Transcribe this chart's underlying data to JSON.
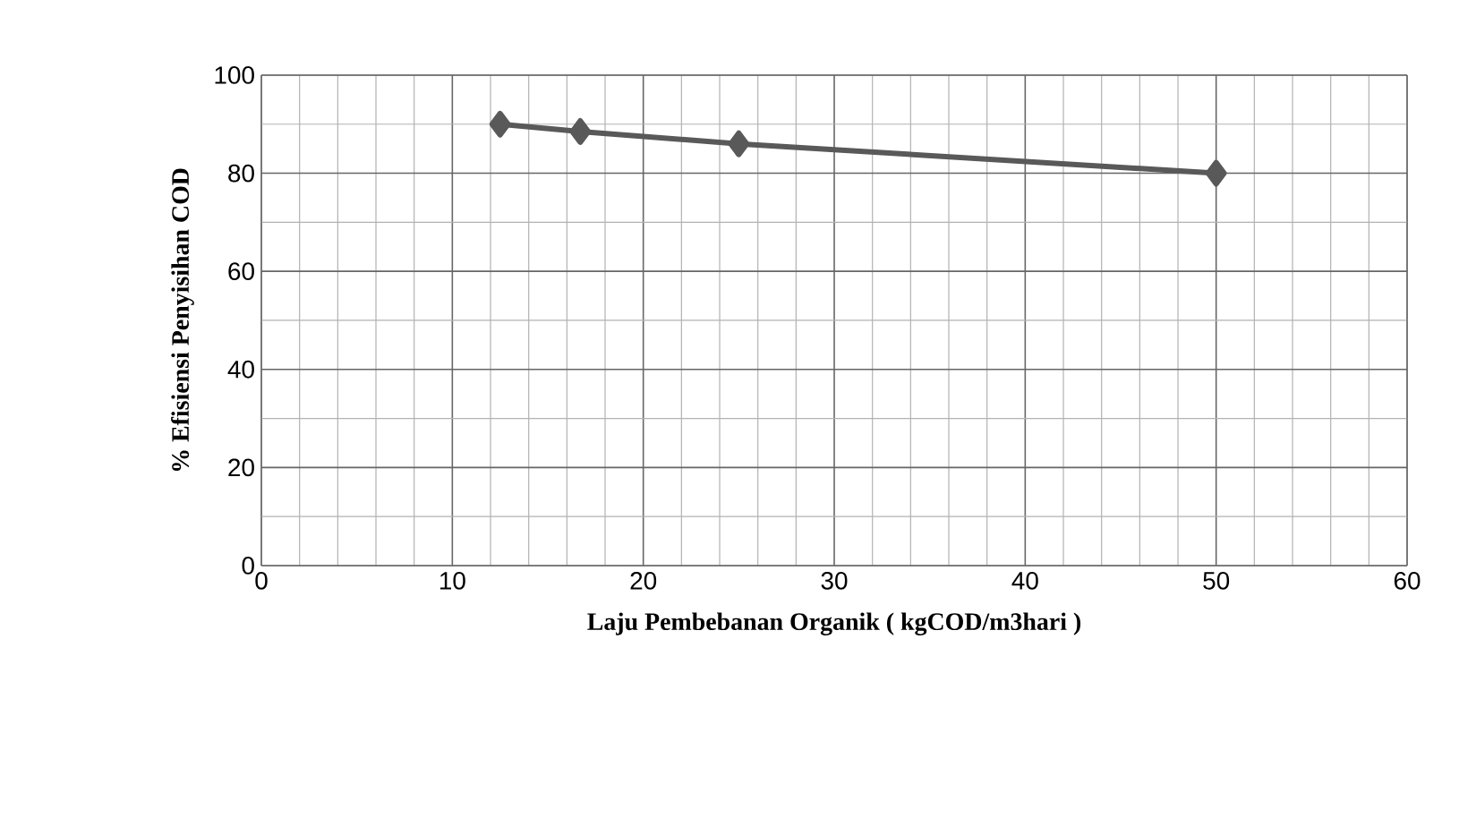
{
  "chart_data": {
    "type": "line",
    "xlabel": "Laju Pembebanan Organik ( kgCOD/m3hari )",
    "ylabel": "% Efisiensi Penyisihan  COD",
    "x": [
      12.5,
      16.7,
      25,
      50
    ],
    "values": [
      90,
      88.5,
      86,
      80
    ],
    "color": "#595959",
    "marker": "diamond",
    "line_style": "solid",
    "xlim": [
      0,
      60
    ],
    "xticks": [
      0,
      10,
      20,
      30,
      40,
      50,
      60
    ],
    "ylim": [
      0,
      100
    ],
    "yticks": [
      0,
      20,
      40,
      60,
      80,
      100
    ],
    "grid": true
  }
}
